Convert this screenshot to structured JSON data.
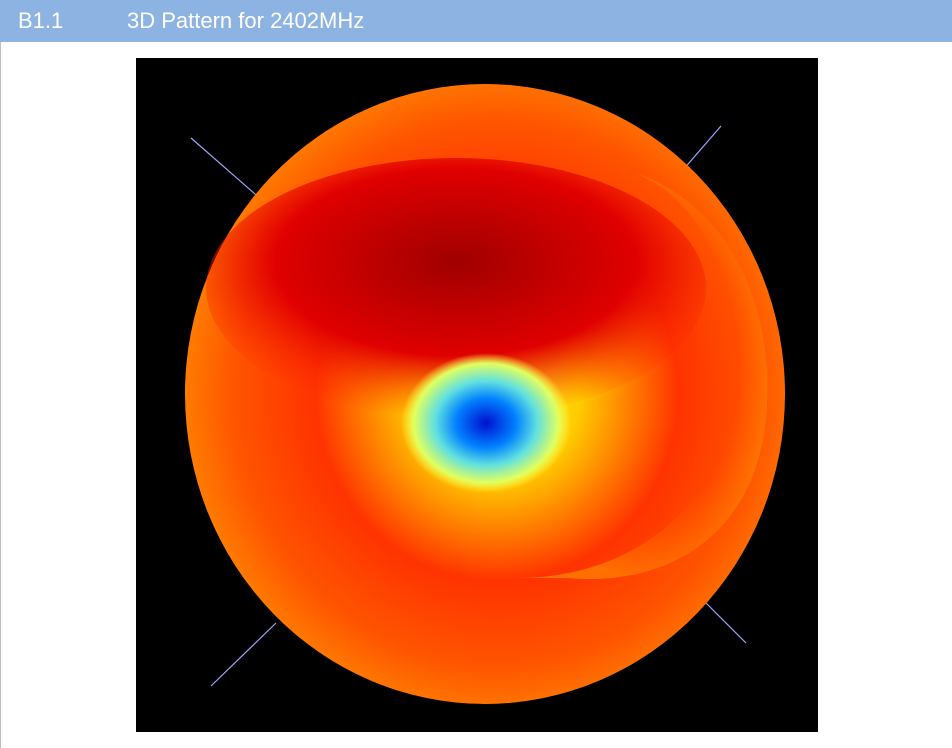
{
  "section": {
    "number": "B1.1",
    "title": "3D Pattern for 2402MHz"
  }
}
